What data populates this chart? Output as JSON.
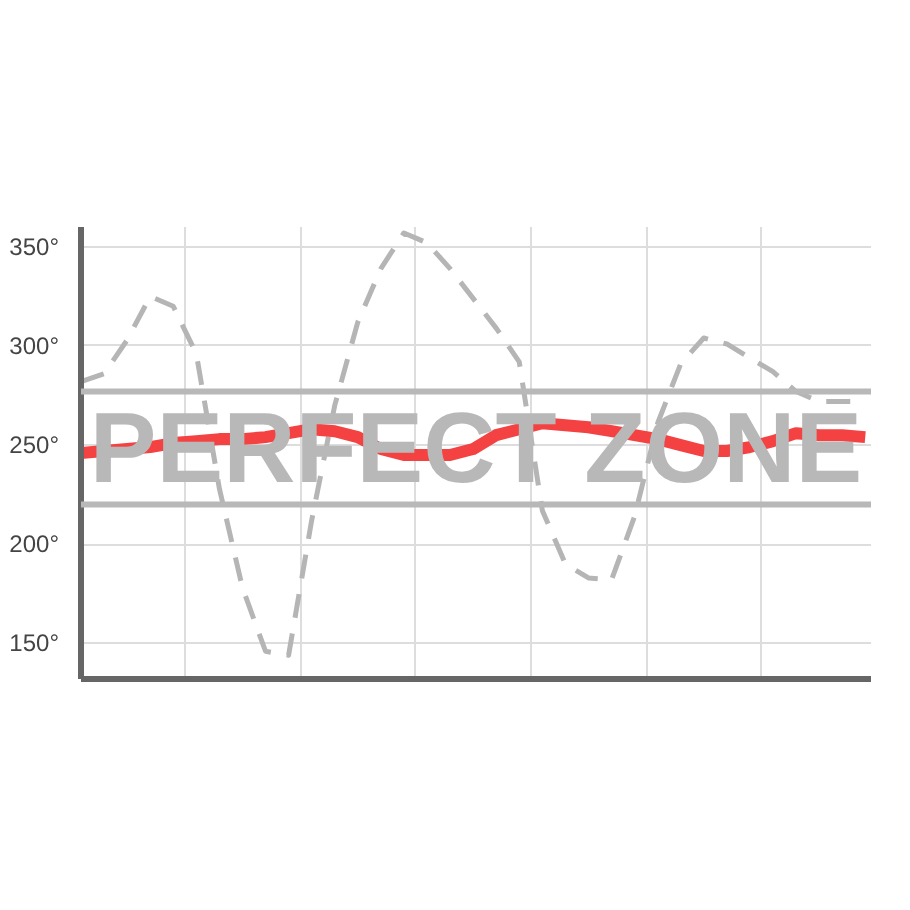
{
  "chart_data": {
    "type": "line",
    "ylim": [
      132,
      360
    ],
    "categories": [
      null,
      null,
      null,
      null,
      null,
      null,
      null,
      null,
      null,
      null,
      null,
      null,
      null,
      null,
      null,
      null,
      null,
      null,
      null,
      null,
      null,
      null,
      null,
      null,
      null,
      null,
      null,
      null,
      null,
      null,
      null,
      null,
      null,
      null,
      null
    ],
    "yticks": [
      {
        "value": 150,
        "label": "150°"
      },
      {
        "value": 200,
        "label": "200°"
      },
      {
        "value": 250,
        "label": "250°"
      },
      {
        "value": 300,
        "label": "300°"
      },
      {
        "value": 350,
        "label": "350°"
      }
    ],
    "grid": true,
    "marker": "none",
    "tick_labels": "y",
    "ref_lines": [
      {
        "axis": "y",
        "value": 277,
        "color": "#b8b8b8"
      },
      {
        "axis": "y",
        "value": 220,
        "color": "#b8b8b8"
      }
    ],
    "annotations": [
      "PERFECT ZONE"
    ],
    "series": [
      {
        "color": "#b5b5b5",
        "line_style": "dashed",
        "values": [
          282,
          286,
          303,
          325,
          320,
          296,
          228,
          178,
          146,
          144,
          212,
          270,
          312,
          339,
          357,
          352,
          339,
          324,
          309,
          292,
          217,
          190,
          183,
          182,
          214,
          261,
          291,
          304,
          301,
          294,
          287,
          277,
          272,
          272,
          272
        ]
      },
      {
        "color": "#f44242",
        "line_style": "solid",
        "values": [
          246,
          247,
          248,
          249,
          251,
          252,
          253,
          253,
          254,
          256,
          258,
          257,
          254,
          248,
          245,
          245,
          245,
          248,
          255,
          258,
          261,
          260,
          259,
          257,
          255,
          253,
          250,
          247,
          247,
          249,
          252,
          256,
          255,
          255,
          254
        ]
      }
    ]
  }
}
